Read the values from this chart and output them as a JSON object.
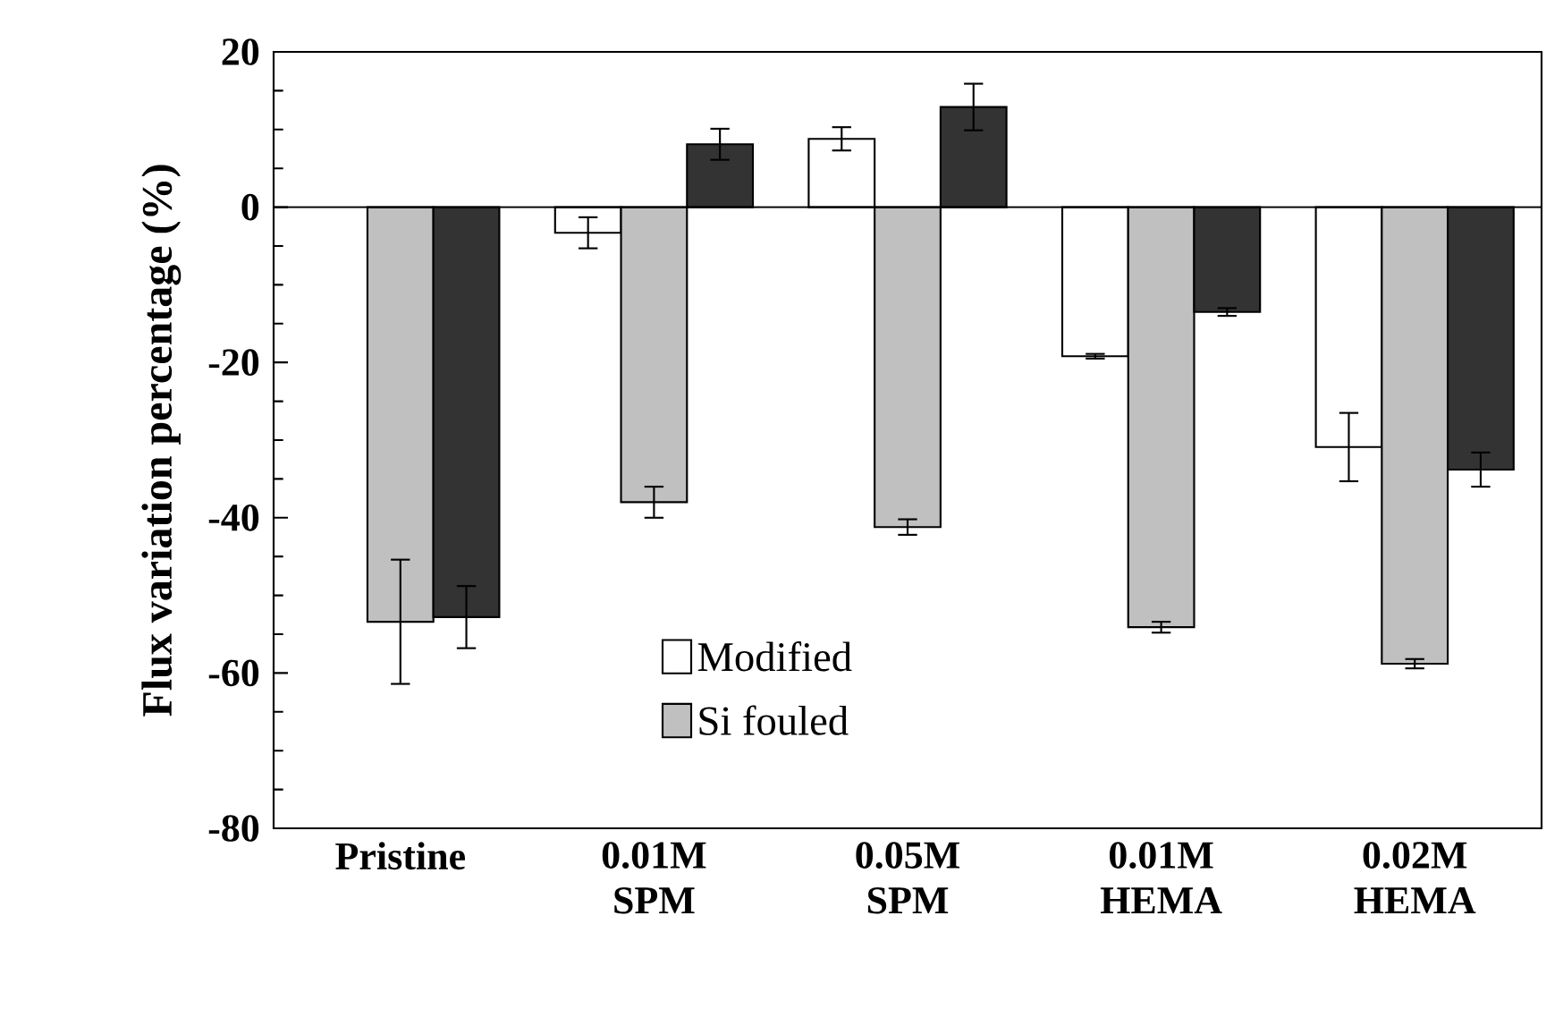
{
  "chart_data": {
    "type": "bar",
    "ylabel": "Flux variation percentage (%)",
    "categories": [
      "Pristine",
      "0.01M SPM",
      "0.05M SPM",
      "0.01M HEMA",
      "0.02M HEMA"
    ],
    "series": [
      {
        "name": "Modified",
        "color": "#ffffff",
        "values": [
          0,
          -3.3,
          8.8,
          -19.2,
          -30.9
        ],
        "errors": [
          null,
          2,
          1.5,
          0.3,
          4.4
        ]
      },
      {
        "name": "Si fouled",
        "color": "#c0c0c0",
        "values": [
          -53.4,
          -38,
          -41.2,
          -54.1,
          -58.8
        ],
        "errors": [
          8,
          2,
          1,
          0.7,
          0.6
        ]
      },
      {
        "color": "#333333",
        "values": [
          -52.8,
          8.1,
          12.9,
          -13.5,
          -33.8
        ],
        "errors": [
          4,
          2,
          3,
          0.5,
          2.2
        ]
      }
    ],
    "ylim": [
      -80,
      20
    ],
    "yticks": [
      -80,
      -60,
      -40,
      -20,
      0,
      20
    ],
    "legend": "bottom"
  }
}
